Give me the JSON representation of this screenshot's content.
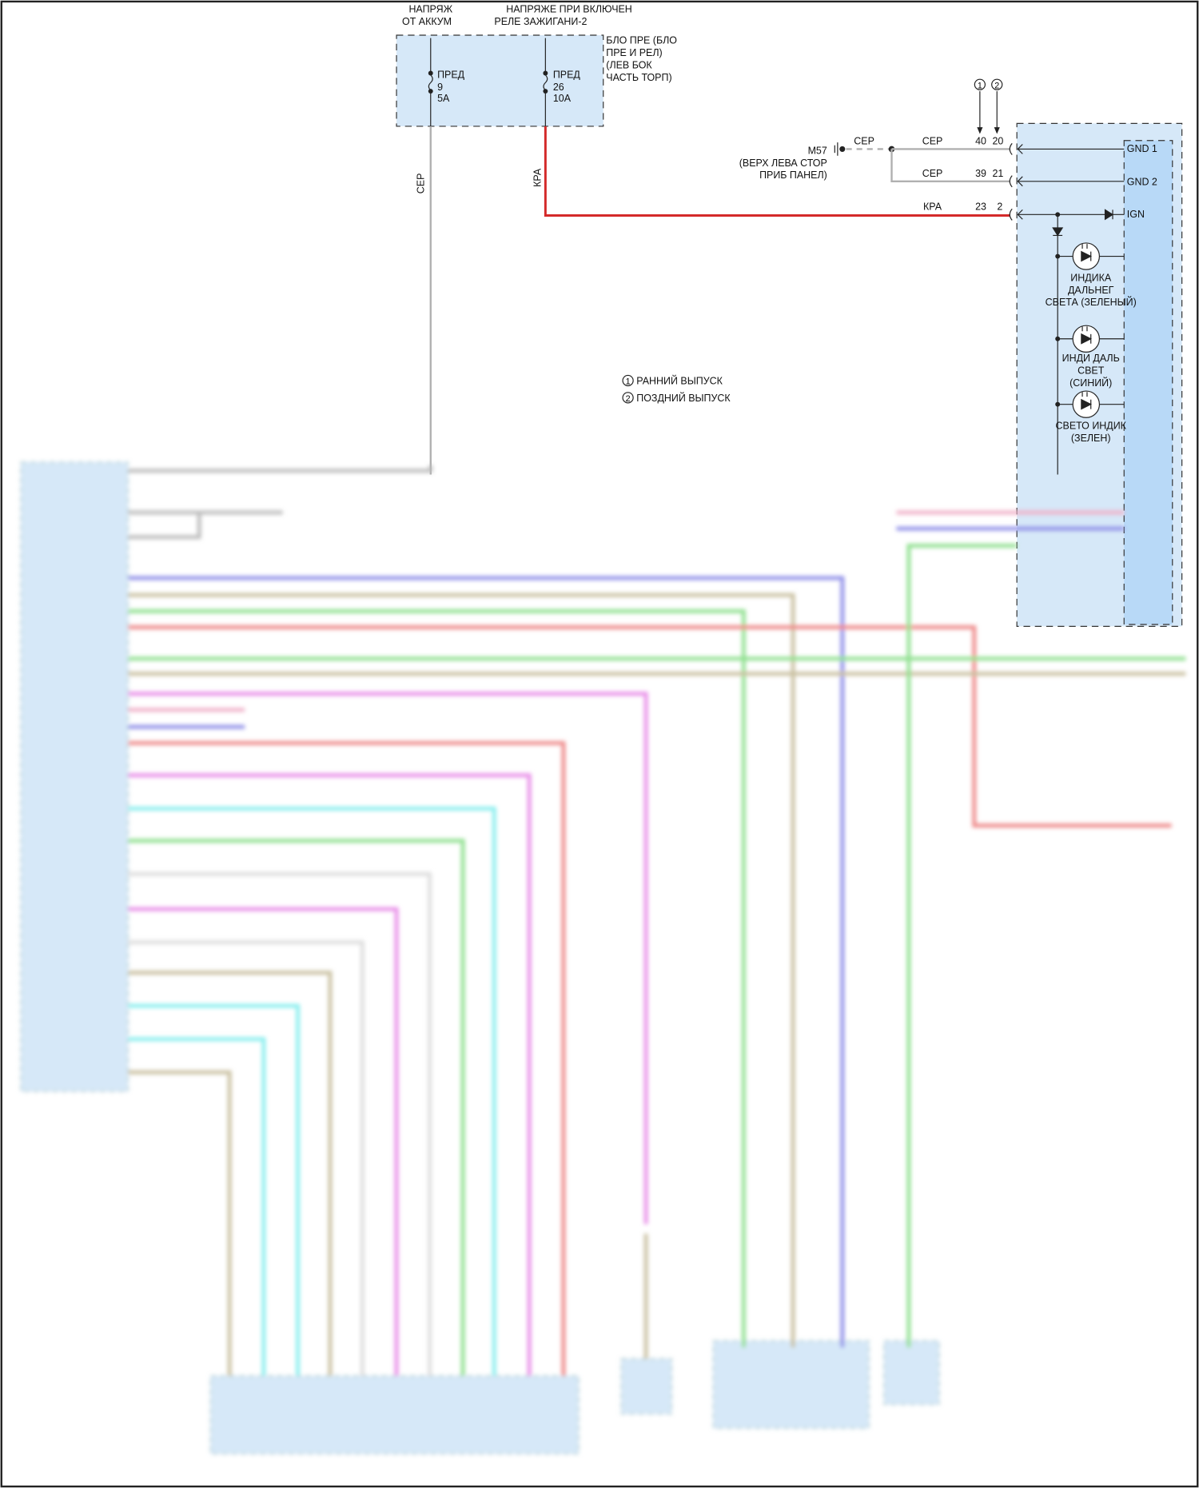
{
  "top_labels": {
    "battery": [
      "НАПРЯЖ",
      "ОТ АККУМ"
    ],
    "ignition": [
      "НАПРЯЖЕ ПРИ ВКЛЮЧЕН",
      "РЕЛЕ ЗАЖИГАНИ-2"
    ]
  },
  "fuse_box": {
    "label": [
      "БЛО ПРЕ (БЛО",
      "ПРЕ И РЕЛ)",
      "(ЛЕВ БОК",
      "ЧАСТЬ ТОРП)"
    ],
    "fuses": [
      {
        "name": "ПРЕД",
        "number": "9",
        "rating": "5A"
      },
      {
        "name": "ПРЕД",
        "number": "26",
        "rating": "10A"
      }
    ]
  },
  "wire_colors": {
    "grey": "СЕР",
    "red": "КРА"
  },
  "ground": {
    "id": "M57",
    "location": [
      "(ВЕРХ ЛЕВА СТОР",
      "ПРИБ ПАНЕЛ)"
    ]
  },
  "variants": {
    "early": "1",
    "late": "2"
  },
  "pins": [
    {
      "wire": "СЕР",
      "early": "40",
      "late": "20",
      "signal": "GND 1"
    },
    {
      "wire": "СЕР",
      "early": "39",
      "late": "21",
      "signal": "GND 2"
    },
    {
      "wire": "КРА",
      "early": "23",
      "late": "2",
      "signal": "IGN"
    }
  ],
  "indicators": [
    {
      "label": [
        "ИНДИКА",
        "ДАЛЬНЕГ",
        "СВЕТА (ЗЕЛЕНЫЙ)"
      ],
      "color": "green"
    },
    {
      "label": [
        "ИНДИ ДАЛЬ",
        "СВЕТ",
        "(СИНИЙ)"
      ],
      "color": "blue"
    },
    {
      "label": [
        "СВЕТО ИНДИК",
        "(ЗЕЛЕН)"
      ],
      "color": "green"
    }
  ],
  "legend": [
    {
      "mark": "1",
      "text": "РАННИЙ ВЫПУСК"
    },
    {
      "mark": "2",
      "text": "ПОЗДНИЙ ВЫПУСК"
    }
  ],
  "colors": {
    "box_fill": "#d6e8f8",
    "module_inner": "#b8d9f7",
    "wire_red": "#d42a2a",
    "wire_grey": "#b0b0b0"
  }
}
